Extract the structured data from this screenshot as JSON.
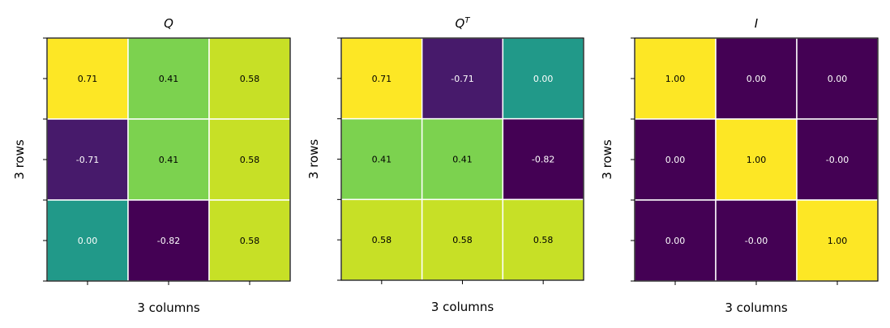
{
  "chart_data": [
    {
      "type": "heatmap",
      "title": "Q",
      "xlabel": "3 columns",
      "ylabel": "3 rows",
      "values": [
        [
          0.71,
          0.41,
          0.58
        ],
        [
          -0.71,
          0.41,
          0.58
        ],
        [
          0.0,
          -0.82,
          0.58
        ]
      ],
      "labels": [
        [
          "0.71",
          "0.41",
          "0.58"
        ],
        [
          "-0.71",
          "0.41",
          "0.58"
        ],
        [
          "0.00",
          "-0.82",
          "0.58"
        ]
      ],
      "colormap": "viridis",
      "grid": true
    },
    {
      "type": "heatmap",
      "title": "Q",
      "title_superscript": "T",
      "xlabel": "3 columns",
      "ylabel": "3 rows",
      "values": [
        [
          0.71,
          -0.71,
          0.0
        ],
        [
          0.41,
          0.41,
          -0.82
        ],
        [
          0.58,
          0.58,
          0.58
        ]
      ],
      "labels": [
        [
          "0.71",
          "-0.71",
          "0.00"
        ],
        [
          "0.41",
          "0.41",
          "-0.82"
        ],
        [
          "0.58",
          "0.58",
          "0.58"
        ]
      ],
      "colormap": "viridis",
      "grid": true
    },
    {
      "type": "heatmap",
      "title": "I",
      "xlabel": "3 columns",
      "ylabel": "3 rows",
      "values": [
        [
          1.0,
          0.0,
          0.0
        ],
        [
          0.0,
          1.0,
          -0.0
        ],
        [
          0.0,
          -0.0,
          1.0
        ]
      ],
      "labels": [
        [
          "1.00",
          "0.00",
          "0.00"
        ],
        [
          "0.00",
          "1.00",
          "-0.00"
        ],
        [
          "0.00",
          "-0.00",
          "1.00"
        ]
      ],
      "colormap": "viridis",
      "grid": true
    }
  ]
}
